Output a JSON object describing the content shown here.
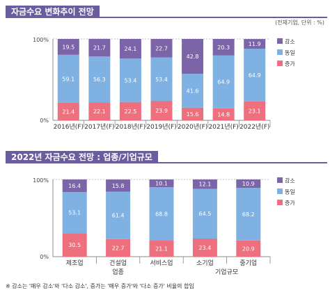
{
  "header1": {
    "title": "자금수요 변화추이 전망",
    "unit": "(전체기업, 단위 : %)"
  },
  "header2": {
    "title": "2022년 자금수요 전망 : 업종/기업규모"
  },
  "footnote": "※ 감소는 '매우 감소'와 '다소 감소', 증가는 '매우 증가'와 '다소 증가' 비율의 합임",
  "colors": {
    "decrease": "#7b64a8",
    "same": "#7fb1e2",
    "increase": "#ee6f7e",
    "title_bg": "#6a5c9e"
  },
  "chart_data": [
    {
      "type": "bar",
      "stacked": true,
      "percent": true,
      "ylim": [
        0,
        100
      ],
      "yticks": [
        "0%",
        "100%"
      ],
      "categories": [
        "2016년(F)",
        "2017년(F)",
        "2018년(F)",
        "2019년(F)",
        "2020년(F)",
        "2021년(F)",
        "2022년(F)"
      ],
      "series": [
        {
          "name": "증가",
          "values": [
            21.4,
            22.1,
            22.5,
            23.9,
            15.6,
            14.8,
            23.1
          ]
        },
        {
          "name": "동일",
          "values": [
            59.1,
            56.3,
            53.4,
            53.4,
            41.6,
            64.9,
            64.9
          ]
        },
        {
          "name": "감소",
          "values": [
            19.5,
            21.7,
            24.1,
            22.7,
            42.8,
            20.3,
            11.9
          ]
        }
      ],
      "legend": [
        "감소",
        "동일",
        "증가"
      ],
      "legend_position": "right"
    },
    {
      "type": "bar",
      "stacked": true,
      "percent": true,
      "ylim": [
        0,
        100
      ],
      "yticks": [
        "0%",
        "100%"
      ],
      "categories": [
        "제조업",
        "건설업",
        "서비스업",
        "소기업",
        "중기업"
      ],
      "group_labels": [
        {
          "label": "업종",
          "from": 0,
          "to": 2
        },
        {
          "label": "기업규모",
          "from": 3,
          "to": 4
        }
      ],
      "series": [
        {
          "name": "증가",
          "values": [
            30.5,
            22.7,
            21.1,
            23.4,
            20.9
          ]
        },
        {
          "name": "동일",
          "values": [
            53.1,
            61.4,
            68.8,
            64.5,
            68.2
          ]
        },
        {
          "name": "감소",
          "values": [
            16.4,
            15.8,
            10.1,
            12.1,
            10.9
          ]
        }
      ],
      "legend": [
        "감소",
        "동일",
        "증가"
      ],
      "legend_position": "right"
    }
  ]
}
